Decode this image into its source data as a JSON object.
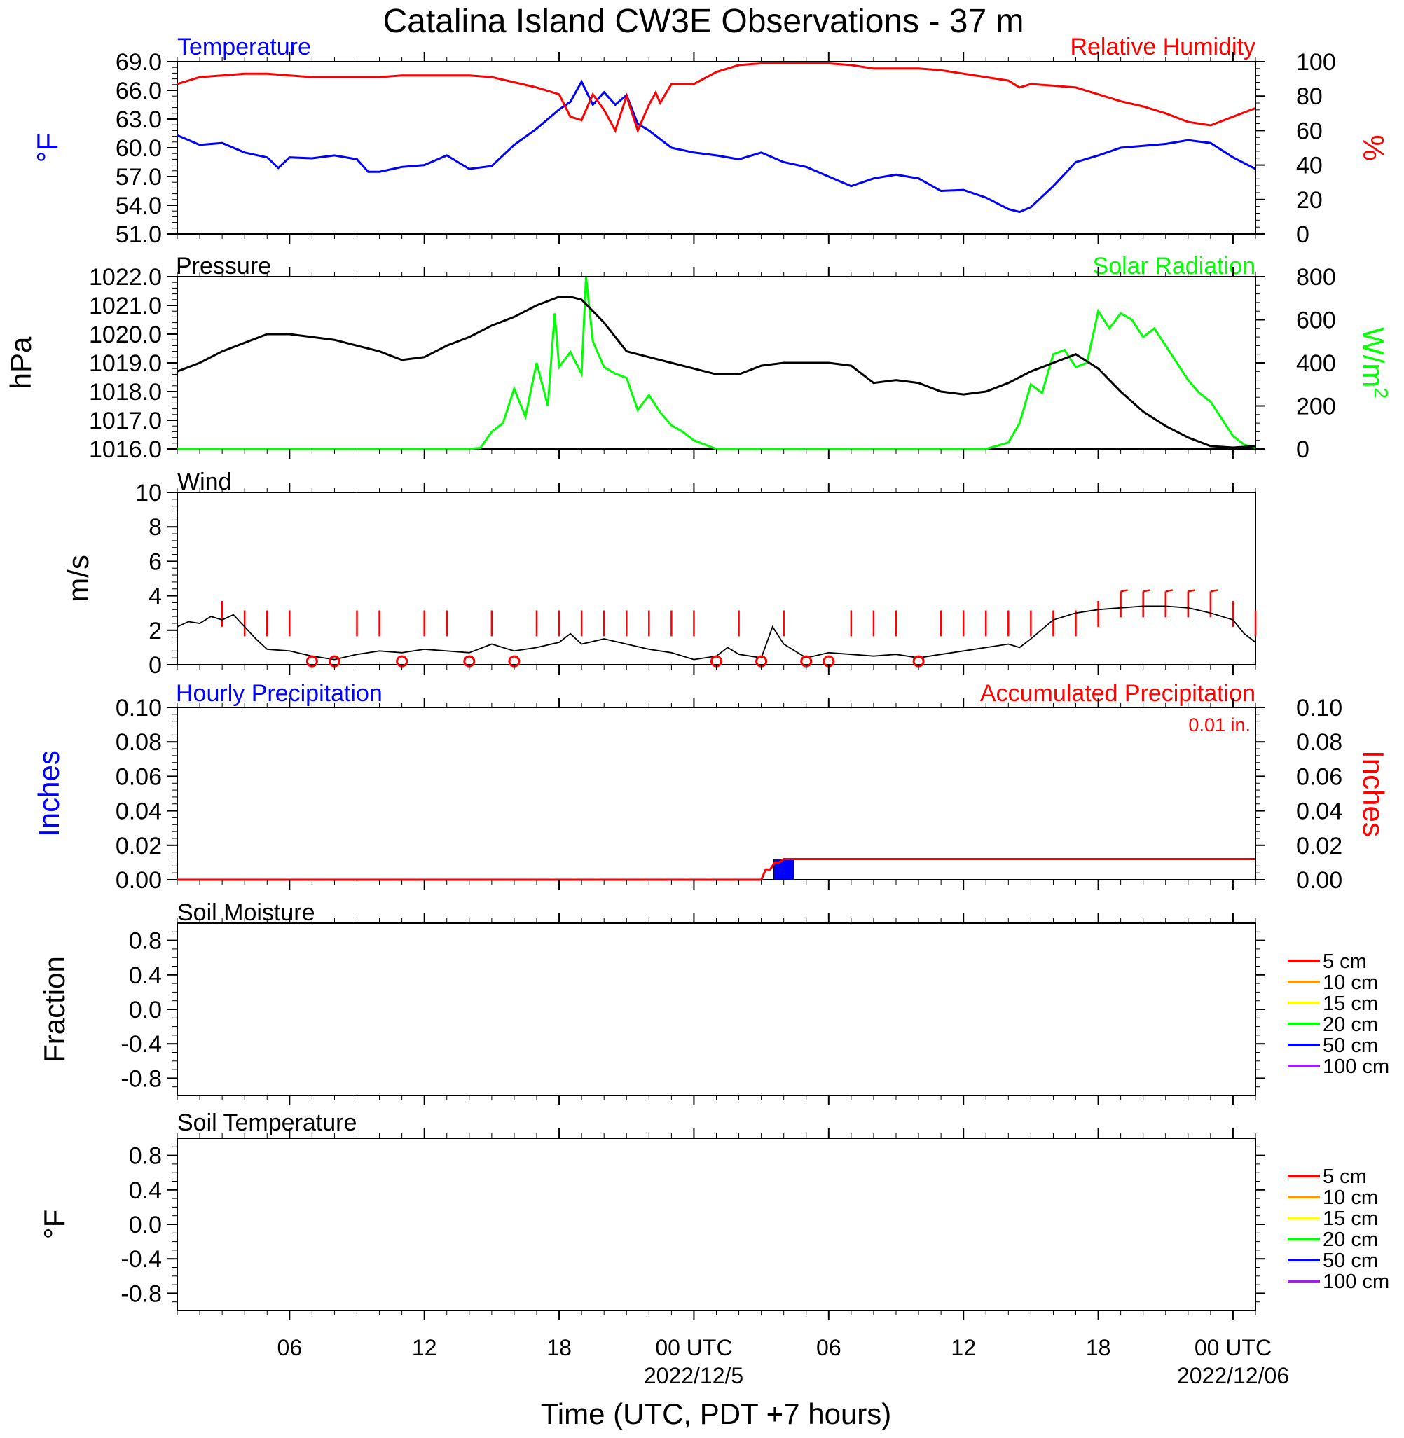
{
  "title": "Catalina Island CW3E Observations - 37 m",
  "x_axis": {
    "title": "Time (UTC, PDT +7 hours)",
    "tick_labels": [
      "06",
      "12",
      "18",
      "00 UTC",
      "06",
      "12",
      "18",
      "00 UTC"
    ],
    "date_labels": [
      "2022/12/5",
      "2022/12/06"
    ]
  },
  "colors": {
    "temperature": "#0000ff",
    "humidity": "#ff0000",
    "pressure": "#000000",
    "solar": "#00ff00",
    "wind": "#000000",
    "barb": "#ff0000",
    "hourly_precip": "#0000ff",
    "accum_precip": "#ff0000"
  },
  "panels": {
    "temp_rh": {
      "left_title": "Temperature",
      "right_title": "Relative Humidity",
      "left_unit": "°F",
      "right_unit": "%",
      "left_ticks": [
        "69.0",
        "66.0",
        "63.0",
        "60.0",
        "57.0",
        "54.0",
        "51.0"
      ],
      "right_ticks": [
        "100",
        "80",
        "60",
        "40",
        "20",
        "0"
      ]
    },
    "pressure_solar": {
      "left_title": "Pressure",
      "right_title": "Solar Radiation",
      "left_unit": "hPa",
      "right_unit": "W/m",
      "right_unit_sup": "2",
      "left_ticks": [
        "1022.0",
        "1021.0",
        "1020.0",
        "1019.0",
        "1018.0",
        "1017.0",
        "1016.0"
      ],
      "right_ticks": [
        "800",
        "600",
        "400",
        "200",
        "0"
      ]
    },
    "wind": {
      "title": "Wind",
      "unit": "m/s",
      "ticks": [
        "10",
        "8",
        "6",
        "4",
        "2",
        "0"
      ]
    },
    "precip": {
      "left_title": "Hourly Precipitation",
      "right_title": "Accumulated Precipitation",
      "total_label": "0.01 in.",
      "left_unit": "Inches",
      "right_unit": "Inches",
      "ticks": [
        "0.10",
        "0.08",
        "0.06",
        "0.04",
        "0.02",
        "0.00"
      ]
    },
    "soil_moisture": {
      "title": "Soil Moisture",
      "unit": "Fraction",
      "ticks": [
        "0.8",
        "0.4",
        "0.0",
        "-0.4",
        "-0.8"
      ]
    },
    "soil_temp": {
      "title": "Soil Temperature",
      "unit": "°F",
      "ticks": [
        "0.8",
        "0.4",
        "0.0",
        "-0.4",
        "-0.8"
      ]
    }
  },
  "soil_legend": [
    {
      "label": "5 cm",
      "color": "#ff0000"
    },
    {
      "label": "10 cm",
      "color": "#ff9900"
    },
    {
      "label": "15 cm",
      "color": "#ffff00"
    },
    {
      "label": "20 cm",
      "color": "#00ff00"
    },
    {
      "label": "50 cm",
      "color": "#0000ff"
    },
    {
      "label": "100 cm",
      "color": "#a020f0"
    }
  ],
  "chart_data": [
    {
      "type": "line",
      "panel": "temp_rh",
      "x_unit": "hours UTC from 2022-12-04 00:00",
      "xlim": [
        1,
        49
      ],
      "series": [
        {
          "name": "Temperature",
          "axis": "left",
          "ylim": [
            51,
            69
          ],
          "x": [
            1,
            2,
            3,
            4,
            5,
            5.5,
            6,
            7,
            8,
            9,
            9.5,
            10,
            11,
            12,
            13,
            14,
            15,
            16,
            17,
            18,
            18.5,
            19,
            19.5,
            20,
            20.5,
            21,
            21.5,
            22,
            23,
            24,
            25,
            26,
            27,
            28,
            29,
            30,
            31,
            32,
            33,
            34,
            35,
            36,
            37,
            38,
            38.5,
            39,
            40,
            41,
            42,
            43,
            44,
            45,
            46,
            47,
            48,
            49
          ],
          "y": [
            61.3,
            60.3,
            60.5,
            59.5,
            59.0,
            57.9,
            59.0,
            58.9,
            59.2,
            58.8,
            57.5,
            57.5,
            58.0,
            58.2,
            59.2,
            57.8,
            58.1,
            60.3,
            62.0,
            64.0,
            64.8,
            66.9,
            64.5,
            65.8,
            64.5,
            65.5,
            62.5,
            61.8,
            60.0,
            59.5,
            59.2,
            58.8,
            59.5,
            58.5,
            58.0,
            57.0,
            56.0,
            56.8,
            57.2,
            56.8,
            55.5,
            55.6,
            54.8,
            53.6,
            53.3,
            53.8,
            56.0,
            58.5,
            59.2,
            60.0,
            60.2,
            60.4,
            60.8,
            60.5,
            59.0,
            57.8
          ]
        },
        {
          "name": "Relative Humidity",
          "axis": "right",
          "ylim": [
            0,
            100
          ],
          "x": [
            1,
            2,
            3,
            4,
            5,
            6,
            7,
            8,
            9,
            10,
            11,
            12,
            13,
            14,
            15,
            16,
            17,
            18,
            18.5,
            19,
            19.5,
            20,
            20.5,
            21,
            21.5,
            22,
            22.3,
            22.5,
            23,
            24,
            25,
            26,
            27,
            28,
            29,
            30,
            31,
            32,
            33,
            34,
            35,
            36,
            37,
            38,
            38.5,
            39,
            40,
            41,
            42,
            43,
            44,
            45,
            46,
            47,
            48,
            49
          ],
          "y": [
            87,
            91,
            92,
            93,
            93,
            92,
            91,
            91,
            91,
            91,
            92,
            92,
            92,
            92,
            91,
            88,
            85,
            81,
            68,
            66,
            81,
            72,
            60,
            80,
            60,
            75,
            82,
            76,
            87,
            87,
            94,
            98,
            99,
            99,
            99,
            99,
            98,
            96,
            96,
            96,
            95,
            93,
            91,
            89,
            85,
            87,
            86,
            85,
            81,
            77,
            74,
            70,
            65,
            63,
            68,
            73
          ]
        }
      ]
    },
    {
      "type": "line",
      "panel": "pressure_solar",
      "x_unit": "hours UTC from 2022-12-04 00:00",
      "xlim": [
        1,
        49
      ],
      "series": [
        {
          "name": "Pressure",
          "axis": "left",
          "ylim": [
            1016,
            1022
          ],
          "x": [
            1,
            2,
            3,
            4,
            5,
            6,
            7,
            8,
            9,
            10,
            11,
            12,
            13,
            14,
            15,
            16,
            17,
            18,
            18.5,
            19,
            19.5,
            20,
            21,
            22,
            23,
            24,
            25,
            26,
            27,
            28,
            29,
            30,
            31,
            32,
            33,
            34,
            35,
            36,
            37,
            38,
            39,
            40,
            41,
            42,
            43,
            44,
            45,
            46,
            47,
            48,
            49
          ],
          "y": [
            1018.7,
            1019.0,
            1019.4,
            1019.7,
            1020.0,
            1020.0,
            1019.9,
            1019.8,
            1019.6,
            1019.4,
            1019.1,
            1019.2,
            1019.6,
            1019.9,
            1020.3,
            1020.6,
            1021.0,
            1021.3,
            1021.3,
            1021.2,
            1020.8,
            1020.4,
            1019.4,
            1019.2,
            1019.0,
            1018.8,
            1018.6,
            1018.6,
            1018.9,
            1019.0,
            1019.0,
            1019.0,
            1018.9,
            1018.3,
            1018.4,
            1018.3,
            1018.0,
            1017.9,
            1018.0,
            1018.3,
            1018.7,
            1019.0,
            1019.3,
            1018.8,
            1018.0,
            1017.3,
            1016.8,
            1016.4,
            1016.1,
            1016.05,
            1016.1
          ]
        },
        {
          "name": "Solar Radiation",
          "axis": "right",
          "ylim": [
            0,
            800
          ],
          "x": [
            1,
            14,
            14.5,
            15,
            15.5,
            16,
            16.5,
            17,
            17.5,
            17.8,
            18,
            18.5,
            19,
            19.2,
            19.5,
            20,
            20.5,
            21,
            21.5,
            22,
            22.5,
            23,
            23.5,
            24,
            24.5,
            25,
            26,
            35,
            37,
            38,
            38.5,
            39,
            39.5,
            40,
            40.5,
            41,
            41.5,
            42,
            42.5,
            43,
            43.5,
            44,
            44.5,
            45,
            45.5,
            46,
            46.5,
            47,
            47.5,
            48,
            48.5,
            49
          ],
          "y": [
            0,
            0,
            5,
            80,
            120,
            280,
            150,
            400,
            200,
            630,
            380,
            450,
            350,
            800,
            500,
            380,
            350,
            330,
            180,
            250,
            170,
            110,
            80,
            40,
            20,
            0,
            0,
            0,
            0,
            30,
            120,
            300,
            260,
            440,
            460,
            380,
            400,
            640,
            560,
            630,
            600,
            520,
            560,
            480,
            400,
            320,
            260,
            220,
            140,
            60,
            20,
            5
          ]
        }
      ]
    },
    {
      "type": "line",
      "panel": "wind",
      "x_unit": "hours UTC from 2022-12-04 00:00",
      "xlim": [
        1,
        49
      ],
      "ylim": [
        0,
        10
      ],
      "series": [
        {
          "name": "Wind",
          "x": [
            1,
            1.5,
            2,
            2.5,
            3,
            3.5,
            4,
            4.5,
            5,
            6,
            7,
            8,
            9,
            10,
            11,
            12,
            13,
            14,
            15,
            16,
            17,
            18,
            18.5,
            19,
            20,
            21,
            22,
            23,
            24,
            25,
            25.5,
            26,
            27,
            27.5,
            28,
            29,
            30,
            31,
            32,
            33,
            34,
            35,
            36,
            37,
            38,
            38.5,
            39,
            40,
            41,
            42,
            43,
            44,
            45,
            46,
            47,
            48,
            48.5,
            49
          ],
          "y": [
            2.2,
            2.5,
            2.4,
            2.8,
            2.6,
            2.9,
            2.2,
            1.5,
            0.9,
            0.8,
            0.5,
            0.3,
            0.6,
            0.8,
            0.7,
            0.9,
            0.8,
            0.7,
            1.2,
            0.8,
            1.0,
            1.3,
            1.8,
            1.2,
            1.5,
            1.2,
            0.9,
            0.7,
            0.3,
            0.5,
            1.0,
            0.6,
            0.4,
            2.2,
            1.2,
            0.4,
            0.7,
            0.6,
            0.5,
            0.6,
            0.4,
            0.6,
            0.8,
            1.0,
            1.2,
            1.0,
            1.5,
            2.6,
            3.0,
            3.2,
            3.3,
            3.4,
            3.4,
            3.3,
            3.0,
            2.6,
            1.8,
            1.3
          ]
        }
      ],
      "calm_markers_x": [
        7,
        8,
        11,
        14,
        16,
        25,
        27,
        29,
        30,
        34
      ],
      "barbs": [
        {
          "x": 3,
          "speed": 4
        },
        {
          "x": 4,
          "speed": 3
        },
        {
          "x": 5,
          "speed": 3
        },
        {
          "x": 6,
          "speed": 3
        },
        {
          "x": 9,
          "speed": 3
        },
        {
          "x": 10,
          "speed": 3
        },
        {
          "x": 12,
          "speed": 3
        },
        {
          "x": 13,
          "speed": 3
        },
        {
          "x": 15,
          "speed": 3
        },
        {
          "x": 17,
          "speed": 3
        },
        {
          "x": 18,
          "speed": 3
        },
        {
          "x": 19,
          "speed": 3
        },
        {
          "x": 20,
          "speed": 3
        },
        {
          "x": 21,
          "speed": 3
        },
        {
          "x": 22,
          "speed": 3
        },
        {
          "x": 23,
          "speed": 3
        },
        {
          "x": 24,
          "speed": 3
        },
        {
          "x": 26,
          "speed": 3
        },
        {
          "x": 28,
          "speed": 3
        },
        {
          "x": 31,
          "speed": 3
        },
        {
          "x": 32,
          "speed": 3
        },
        {
          "x": 33,
          "speed": 3
        },
        {
          "x": 35,
          "speed": 3
        },
        {
          "x": 36,
          "speed": 3
        },
        {
          "x": 37,
          "speed": 3
        },
        {
          "x": 38,
          "speed": 3
        },
        {
          "x": 39,
          "speed": 3
        },
        {
          "x": 40,
          "speed": 3
        },
        {
          "x": 41,
          "speed": 3
        },
        {
          "x": 42,
          "speed": 4
        },
        {
          "x": 43,
          "speed": 5
        },
        {
          "x": 44,
          "speed": 5
        },
        {
          "x": 45,
          "speed": 5
        },
        {
          "x": 46,
          "speed": 5
        },
        {
          "x": 47,
          "speed": 5
        },
        {
          "x": 48,
          "speed": 4
        },
        {
          "x": 49,
          "speed": 3
        }
      ]
    },
    {
      "type": "bar",
      "panel": "precip",
      "x_unit": "hours UTC from 2022-12-04 00:00",
      "xlim": [
        1,
        49
      ],
      "ylim": [
        0,
        0.1
      ],
      "series": [
        {
          "name": "Hourly Precipitation",
          "bars": [
            {
              "x0": 27,
              "x1": 28,
              "value": 0.012
            }
          ]
        },
        {
          "name": "Accumulated Precipitation",
          "x": [
            1,
            27,
            27.2,
            27.4,
            27.6,
            27.8,
            28,
            49
          ],
          "y": [
            0,
            0,
            0.006,
            0.006,
            0.01,
            0.01,
            0.012,
            0.012
          ]
        }
      ]
    }
  ]
}
